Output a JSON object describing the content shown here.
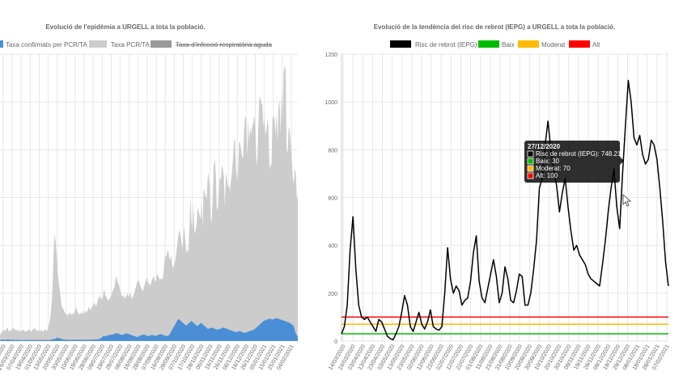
{
  "chart_data": [
    {
      "type": "area",
      "title": "Evolució de l'epidèmia a URGELL a tota la població.",
      "legend": [
        {
          "label": "Taxa confirmats per PCR/TA",
          "color": "#4a8fd6",
          "hidden": false
        },
        {
          "label": "Taxa PCR/TA",
          "color": "#cccccc",
          "hidden": false
        },
        {
          "label": "Taxa d'infecció respiratòria aguda",
          "color": "#999999",
          "hidden": true
        }
      ],
      "legend_placement": "top",
      "grid": true,
      "x_ticks": [
        "14/03/2020",
        "26/03/2020",
        "07/04/2020",
        "19/04/2020",
        "01/05/2020",
        "13/05/2020",
        "20/05/2020",
        "30/05/2020",
        "10/06/2020",
        "19/06/2020",
        "28/06/2020",
        "09/07/2020",
        "19/07/2020",
        "28/07/2020",
        "08/08/2020",
        "16/08/2020",
        "28/08/2020",
        "07/09/2020",
        "16/09/2020",
        "28/09/2020",
        "07/10/2020",
        "17/10/2020",
        "28/10/2020",
        "06/11/2020",
        "16/11/2020",
        "26/11/2020",
        "06/12/2020",
        "16/12/2020",
        "26/12/2020",
        "05/01/2021",
        "15/01/2021",
        "25/01/2021",
        "04/02/2021"
      ],
      "series": [
        {
          "name": "Taxa PCR/TA",
          "color": "#cccccc",
          "values": [
            3,
            4,
            5,
            5,
            6,
            5,
            6,
            7,
            6,
            5,
            5,
            6,
            6,
            7,
            6,
            6,
            5,
            6,
            5,
            6,
            5,
            5,
            6,
            6,
            5,
            5,
            5,
            5,
            6,
            6,
            5,
            5,
            6,
            6,
            7,
            6,
            6,
            5,
            5,
            6,
            5,
            6,
            5,
            5,
            6,
            6,
            5,
            6,
            8,
            10,
            14,
            20,
            30,
            48,
            56,
            52,
            44,
            36,
            30,
            27,
            22,
            18,
            17,
            16,
            15,
            14,
            14,
            13,
            15,
            14,
            15,
            13,
            15,
            14,
            16,
            18,
            16,
            15,
            14,
            14,
            15,
            14,
            16,
            14,
            15,
            16,
            15,
            17,
            18,
            16,
            17,
            18,
            19,
            20,
            19,
            18,
            20,
            22,
            24,
            22,
            23,
            21,
            25,
            27,
            24,
            23,
            22,
            21,
            22,
            23,
            24,
            26,
            27,
            28,
            32,
            34,
            31,
            30,
            28,
            26,
            24,
            23,
            24,
            22,
            23,
            24,
            25,
            23,
            24,
            25,
            22,
            23,
            24,
            26,
            28,
            30,
            32,
            31,
            30,
            28,
            27,
            26,
            28,
            30,
            32,
            33,
            31,
            30,
            29,
            30,
            32,
            33,
            34,
            31,
            32,
            35,
            34,
            33,
            32,
            33,
            32,
            33,
            40,
            45,
            44,
            46,
            48,
            44,
            42,
            45,
            40,
            38,
            40,
            42,
            46,
            50,
            55,
            58,
            56,
            52,
            48,
            55,
            60,
            52,
            46,
            48,
            46,
            60,
            75,
            62,
            58,
            72,
            56,
            58,
            60,
            70,
            68,
            66,
            64,
            72,
            60,
            80,
            78,
            76,
            74,
            85,
            88,
            80,
            64,
            62,
            75,
            92,
            95,
            88,
            70,
            68,
            80,
            86,
            84,
            92,
            90,
            86,
            70,
            88,
            85,
            80,
            82,
            78,
            84,
            88,
            95,
            104,
            106,
            90,
            84,
            88,
            104,
            104,
            100,
            96,
            96,
            110,
            118,
            116,
            96,
            116,
            104,
            112,
            108,
            112,
            114,
            118,
            112,
            96,
            92,
            112,
            126,
            128,
            124,
            124,
            112,
            116,
            108,
            110,
            116,
            112,
            90,
            92,
            92,
            116,
            118,
            116,
            108,
            120,
            104,
            122,
            126,
            108,
            130,
            116,
            140,
            144,
            142,
            100,
            98,
            112,
            110,
            104,
            96,
            86,
            82,
            90,
            88,
            76,
            74
          ]
        },
        {
          "name": "Taxa confirmats per PCR/TA",
          "color": "#4a8fd6",
          "values": [
            0.5,
            0.6,
            0.7,
            0.8,
            0.7,
            0.6,
            0.7,
            0.8,
            0.9,
            0.7,
            0.6,
            0.6,
            0.7,
            0.6,
            0.5,
            0.6,
            0.7,
            0.6,
            0.5,
            0.6,
            0.5,
            0.5,
            0.6,
            0.5,
            0.5,
            0.5,
            0.6,
            0.5,
            0.5,
            0.6,
            0.5,
            0.5,
            0.6,
            0.6,
            0.5,
            0.5,
            0.6,
            0.5,
            0.5,
            0.6,
            0.5,
            0.6,
            0.5,
            0.5,
            0.6,
            0.5,
            0.5,
            0.6,
            0.7,
            0.8,
            0.9,
            1,
            1.2,
            1.5,
            1.8,
            1.6,
            1.4,
            1.2,
            1,
            0.9,
            0.8,
            0.7,
            0.7,
            0.6,
            0.6,
            0.6,
            0.6,
            0.6,
            0.7,
            0.6,
            0.7,
            0.6,
            0.7,
            0.6,
            0.7,
            0.8,
            0.7,
            0.7,
            0.6,
            0.6,
            0.7,
            0.6,
            0.7,
            0.6,
            0.7,
            0.7,
            0.7,
            0.8,
            0.8,
            0.7,
            0.8,
            0.8,
            0.9,
            1,
            1.2,
            1.5,
            2,
            2.5,
            2.6,
            2.4,
            2.6,
            2.8,
            3,
            3.2,
            3.3,
            3.2,
            3.4,
            3.6,
            3.8,
            4,
            4.1,
            3.9,
            3.6,
            3.4,
            3.2,
            3.2,
            3.4,
            3.6,
            3.8,
            4,
            3.9,
            3.6,
            3.4,
            3.2,
            3,
            2.8,
            2.6,
            2.4,
            2.2,
            2,
            2.4,
            2.6,
            2.8,
            3,
            3.2,
            3.4,
            3.2,
            3,
            2.8,
            2.6,
            2.6,
            2.8,
            3,
            3.2,
            3,
            2.8,
            2.6,
            2.8,
            3,
            3.2,
            3.4,
            3.6,
            3.4,
            3.2,
            3,
            2.8,
            2.6,
            2.6,
            2.8,
            3,
            4,
            5,
            6,
            7,
            8,
            9,
            10,
            11,
            11.5,
            11,
            10.5,
            10,
            9.5,
            9,
            8.5,
            8,
            8.5,
            9,
            9.5,
            10,
            10.5,
            10,
            9.5,
            9,
            8.5,
            8,
            8,
            8.5,
            9,
            9.5,
            9,
            8.5,
            8,
            7.5,
            7,
            6.5,
            6.4,
            6.6,
            6.8,
            7,
            6.8,
            6.6,
            6.4,
            6.2,
            6,
            6,
            6.2,
            6.4,
            6.6,
            6.8,
            7,
            6.8,
            6.6,
            6.4,
            6.2,
            6,
            5.8,
            5.6,
            5.4,
            5.2,
            5,
            4.8,
            4.6,
            4.8,
            5,
            5.2,
            5,
            4.8,
            4.6,
            4.4,
            4.2,
            4.4,
            4.6,
            4.8,
            5,
            5.2,
            5.4,
            5.6,
            5.8,
            6,
            6.5,
            7,
            7.5,
            8,
            8.5,
            9,
            9.5,
            10,
            10.5,
            10.8,
            11,
            11.2,
            11.4,
            11.5,
            11.6,
            11.4,
            11.2,
            11.4,
            11.6,
            11.8,
            12,
            11.8,
            11.6,
            11.4,
            11.2,
            11,
            10.8,
            10.6,
            10.4,
            10.2,
            10,
            9.8,
            9.6,
            9.2,
            8.8,
            8.4,
            8,
            6,
            4,
            3,
            2.5
          ]
        }
      ],
      "ylim": [
        0,
        150
      ]
    },
    {
      "type": "line",
      "title": "Evolució de la tendència del risc de rebrot (IEPG) a URGELL a tota la població.",
      "legend": [
        {
          "label": "Risc de rebrot (IEPG)",
          "color": "#000000"
        },
        {
          "label": "Baix",
          "color": "#00bb00"
        },
        {
          "label": "Moderat",
          "color": "#ffbb00"
        },
        {
          "label": "Alt",
          "color": "#ff0000"
        }
      ],
      "legend_placement": "top",
      "grid": true,
      "ylim": [
        0,
        1200
      ],
      "y_ticks": [
        0,
        200,
        400,
        600,
        800,
        1000,
        1200
      ],
      "x_ticks": [
        "14/03/2020",
        "24/03/2020",
        "03/04/2020",
        "13/04/2020",
        "23/04/2020",
        "03/05/2020",
        "13/05/2020",
        "23/05/2020",
        "02/06/2020",
        "12/06/2020",
        "22/06/2020",
        "02/07/2020",
        "12/07/2020",
        "22/07/2020",
        "01/08/2020",
        "11/08/2020",
        "21/08/2020",
        "31/08/2020",
        "10/09/2020",
        "20/09/2020",
        "30/09/2020",
        "10/10/2020",
        "20/10/2020",
        "30/10/2020",
        "09/11/2020",
        "19/11/2020",
        "29/11/2020",
        "09/12/2020",
        "19/12/2020",
        "29/12/2020",
        "08/01/2021",
        "18/01/2021",
        "28/01/2021",
        "07/02/2021"
      ],
      "thresholds": [
        {
          "name": "Baix",
          "value": 30,
          "color": "#00bb00"
        },
        {
          "name": "Moderat",
          "value": 70,
          "color": "#ffbb00"
        },
        {
          "name": "Alt",
          "value": 100,
          "color": "#ff0000"
        }
      ],
      "series": [
        {
          "name": "Risc de rebrot (IEPG)",
          "color": "#000000",
          "values": [
            30,
            60,
            150,
            380,
            520,
            300,
            150,
            100,
            90,
            100,
            80,
            60,
            40,
            90,
            80,
            50,
            20,
            10,
            5,
            30,
            60,
            120,
            190,
            150,
            60,
            40,
            80,
            120,
            70,
            50,
            80,
            130,
            60,
            50,
            45,
            60,
            200,
            390,
            260,
            200,
            230,
            210,
            150,
            170,
            180,
            250,
            370,
            440,
            250,
            180,
            160,
            220,
            280,
            340,
            270,
            160,
            200,
            310,
            260,
            170,
            160,
            210,
            280,
            270,
            150,
            150,
            200,
            300,
            420,
            640,
            680,
            820,
            920,
            800,
            720,
            650,
            540,
            620,
            680,
            560,
            460,
            380,
            400,
            360,
            340,
            320,
            280,
            260,
            250,
            240,
            230,
            320,
            420,
            540,
            640,
            720,
            560,
            470,
            700,
            900,
            1090,
            1000,
            850,
            820,
            860,
            780,
            740,
            760,
            840,
            820,
            760,
            640,
            500,
            330,
            230
          ]
        }
      ],
      "tooltip": {
        "title": "27/12/2020",
        "lines": [
          {
            "color": "#000000",
            "text": "Risc de rebrot (IEPG): 748.21"
          },
          {
            "color": "#00bb00",
            "text": "Baix: 30"
          },
          {
            "color": "#ffbb00",
            "text": "Moderat: 70"
          },
          {
            "color": "#ff0000",
            "text": "Alt: 100"
          }
        ]
      }
    }
  ]
}
